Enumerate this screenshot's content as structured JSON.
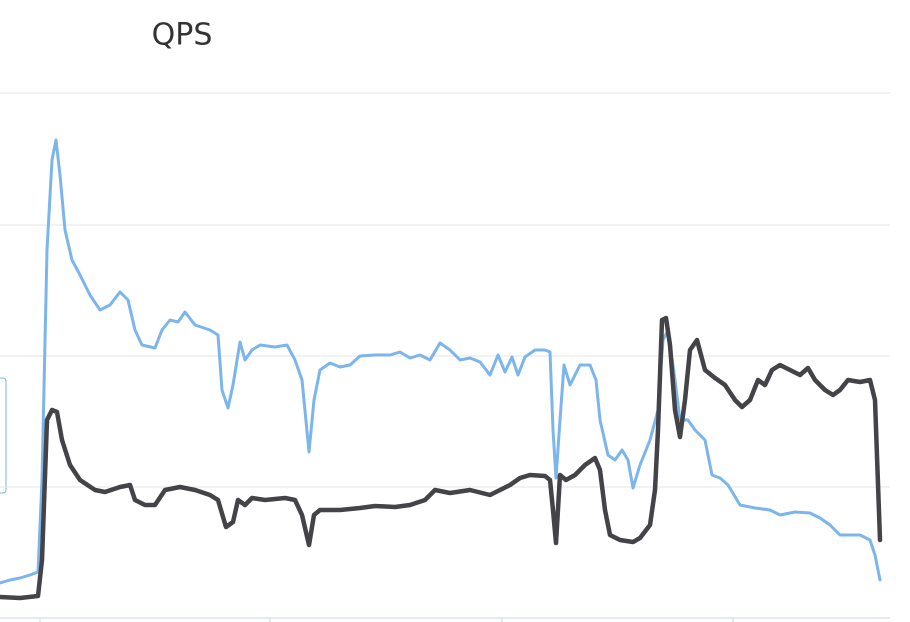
{
  "chart_data": {
    "type": "line",
    "title": "QPS",
    "xlim": [
      0,
      910
    ],
    "xticks": [
      40,
      270,
      502,
      733
    ],
    "ylim": [
      0,
      622
    ],
    "yticks": [
      0,
      131,
      262,
      393,
      525
    ],
    "grid": true,
    "series": [
      {
        "color": "#7cb5ec",
        "x": [
          0,
          10,
          20,
          30,
          38,
          42,
          47,
          52,
          56,
          60,
          65,
          72,
          80,
          90,
          100,
          110,
          120,
          128,
          135,
          142,
          155,
          162,
          170,
          178,
          185,
          195,
          210,
          218,
          222,
          228,
          233,
          240,
          245,
          252,
          260,
          275,
          287,
          295,
          302,
          309,
          314,
          320,
          330,
          340,
          350,
          360,
          375,
          390,
          400,
          410,
          420,
          430,
          440,
          450,
          460,
          470,
          480,
          490,
          498,
          505,
          512,
          518,
          525,
          535,
          545,
          550,
          553,
          556,
          560,
          564,
          570,
          580,
          590,
          596,
          600,
          608,
          615,
          622,
          628,
          633,
          640,
          650,
          658,
          663,
          668,
          675,
          680,
          688,
          695,
          705,
          712,
          720,
          728,
          740,
          755,
          770,
          780,
          795,
          810,
          820,
          830,
          840,
          860,
          870,
          875,
          880
        ],
        "values": [
          35,
          38,
          40,
          43,
          46,
          138,
          368,
          458,
          478,
          443,
          388,
          358,
          343,
          323,
          308,
          313,
          326,
          318,
          288,
          273,
          270,
          288,
          298,
          296,
          306,
          293,
          288,
          283,
          228,
          210,
          233,
          276,
          258,
          268,
          273,
          271,
          273,
          258,
          238,
          166,
          218,
          248,
          255,
          251,
          253,
          262,
          263,
          263,
          266,
          260,
          263,
          258,
          275,
          268,
          258,
          260,
          256,
          243,
          263,
          246,
          261,
          243,
          261,
          268,
          268,
          266,
          188,
          140,
          198,
          253,
          233,
          253,
          253,
          238,
          198,
          163,
          158,
          168,
          158,
          130,
          153,
          178,
          208,
          278,
          288,
          238,
          198,
          198,
          188,
          178,
          143,
          140,
          133,
          113,
          110,
          108,
          103,
          106,
          105,
          100,
          93,
          83,
          83,
          78,
          63,
          38
        ]
      },
      {
        "color": "#434348",
        "x": [
          0,
          20,
          38,
          42,
          47,
          52,
          57,
          62,
          70,
          80,
          95,
          105,
          120,
          130,
          135,
          145,
          155,
          165,
          180,
          195,
          210,
          218,
          226,
          233,
          238,
          245,
          252,
          265,
          285,
          295,
          302,
          309,
          314,
          320,
          340,
          360,
          375,
          395,
          410,
          425,
          435,
          450,
          470,
          490,
          500,
          510,
          520,
          530,
          545,
          550,
          553,
          556,
          560,
          566,
          575,
          585,
          595,
          600,
          605,
          610,
          620,
          633,
          640,
          650,
          655,
          658,
          662,
          666,
          670,
          675,
          680,
          685,
          690,
          697,
          705,
          715,
          725,
          735,
          742,
          750,
          758,
          765,
          772,
          780,
          790,
          800,
          808,
          815,
          825,
          833,
          840,
          848,
          860,
          870,
          875,
          880
        ],
        "values": [
          21,
          20,
          22,
          58,
          198,
          208,
          206,
          178,
          153,
          138,
          128,
          126,
          131,
          133,
          118,
          113,
          113,
          128,
          131,
          128,
          123,
          118,
          91,
          96,
          118,
          113,
          120,
          118,
          120,
          118,
          103,
          73,
          103,
          108,
          108,
          110,
          112,
          111,
          113,
          118,
          128,
          125,
          128,
          123,
          128,
          133,
          140,
          143,
          142,
          138,
          108,
          75,
          143,
          138,
          143,
          153,
          160,
          148,
          108,
          83,
          78,
          76,
          80,
          93,
          128,
          188,
          298,
          300,
          273,
          208,
          181,
          218,
          268,
          278,
          248,
          240,
          233,
          218,
          211,
          218,
          238,
          233,
          248,
          253,
          248,
          243,
          250,
          238,
          228,
          223,
          228,
          238,
          236,
          238,
          218,
          78
        ]
      }
    ]
  }
}
